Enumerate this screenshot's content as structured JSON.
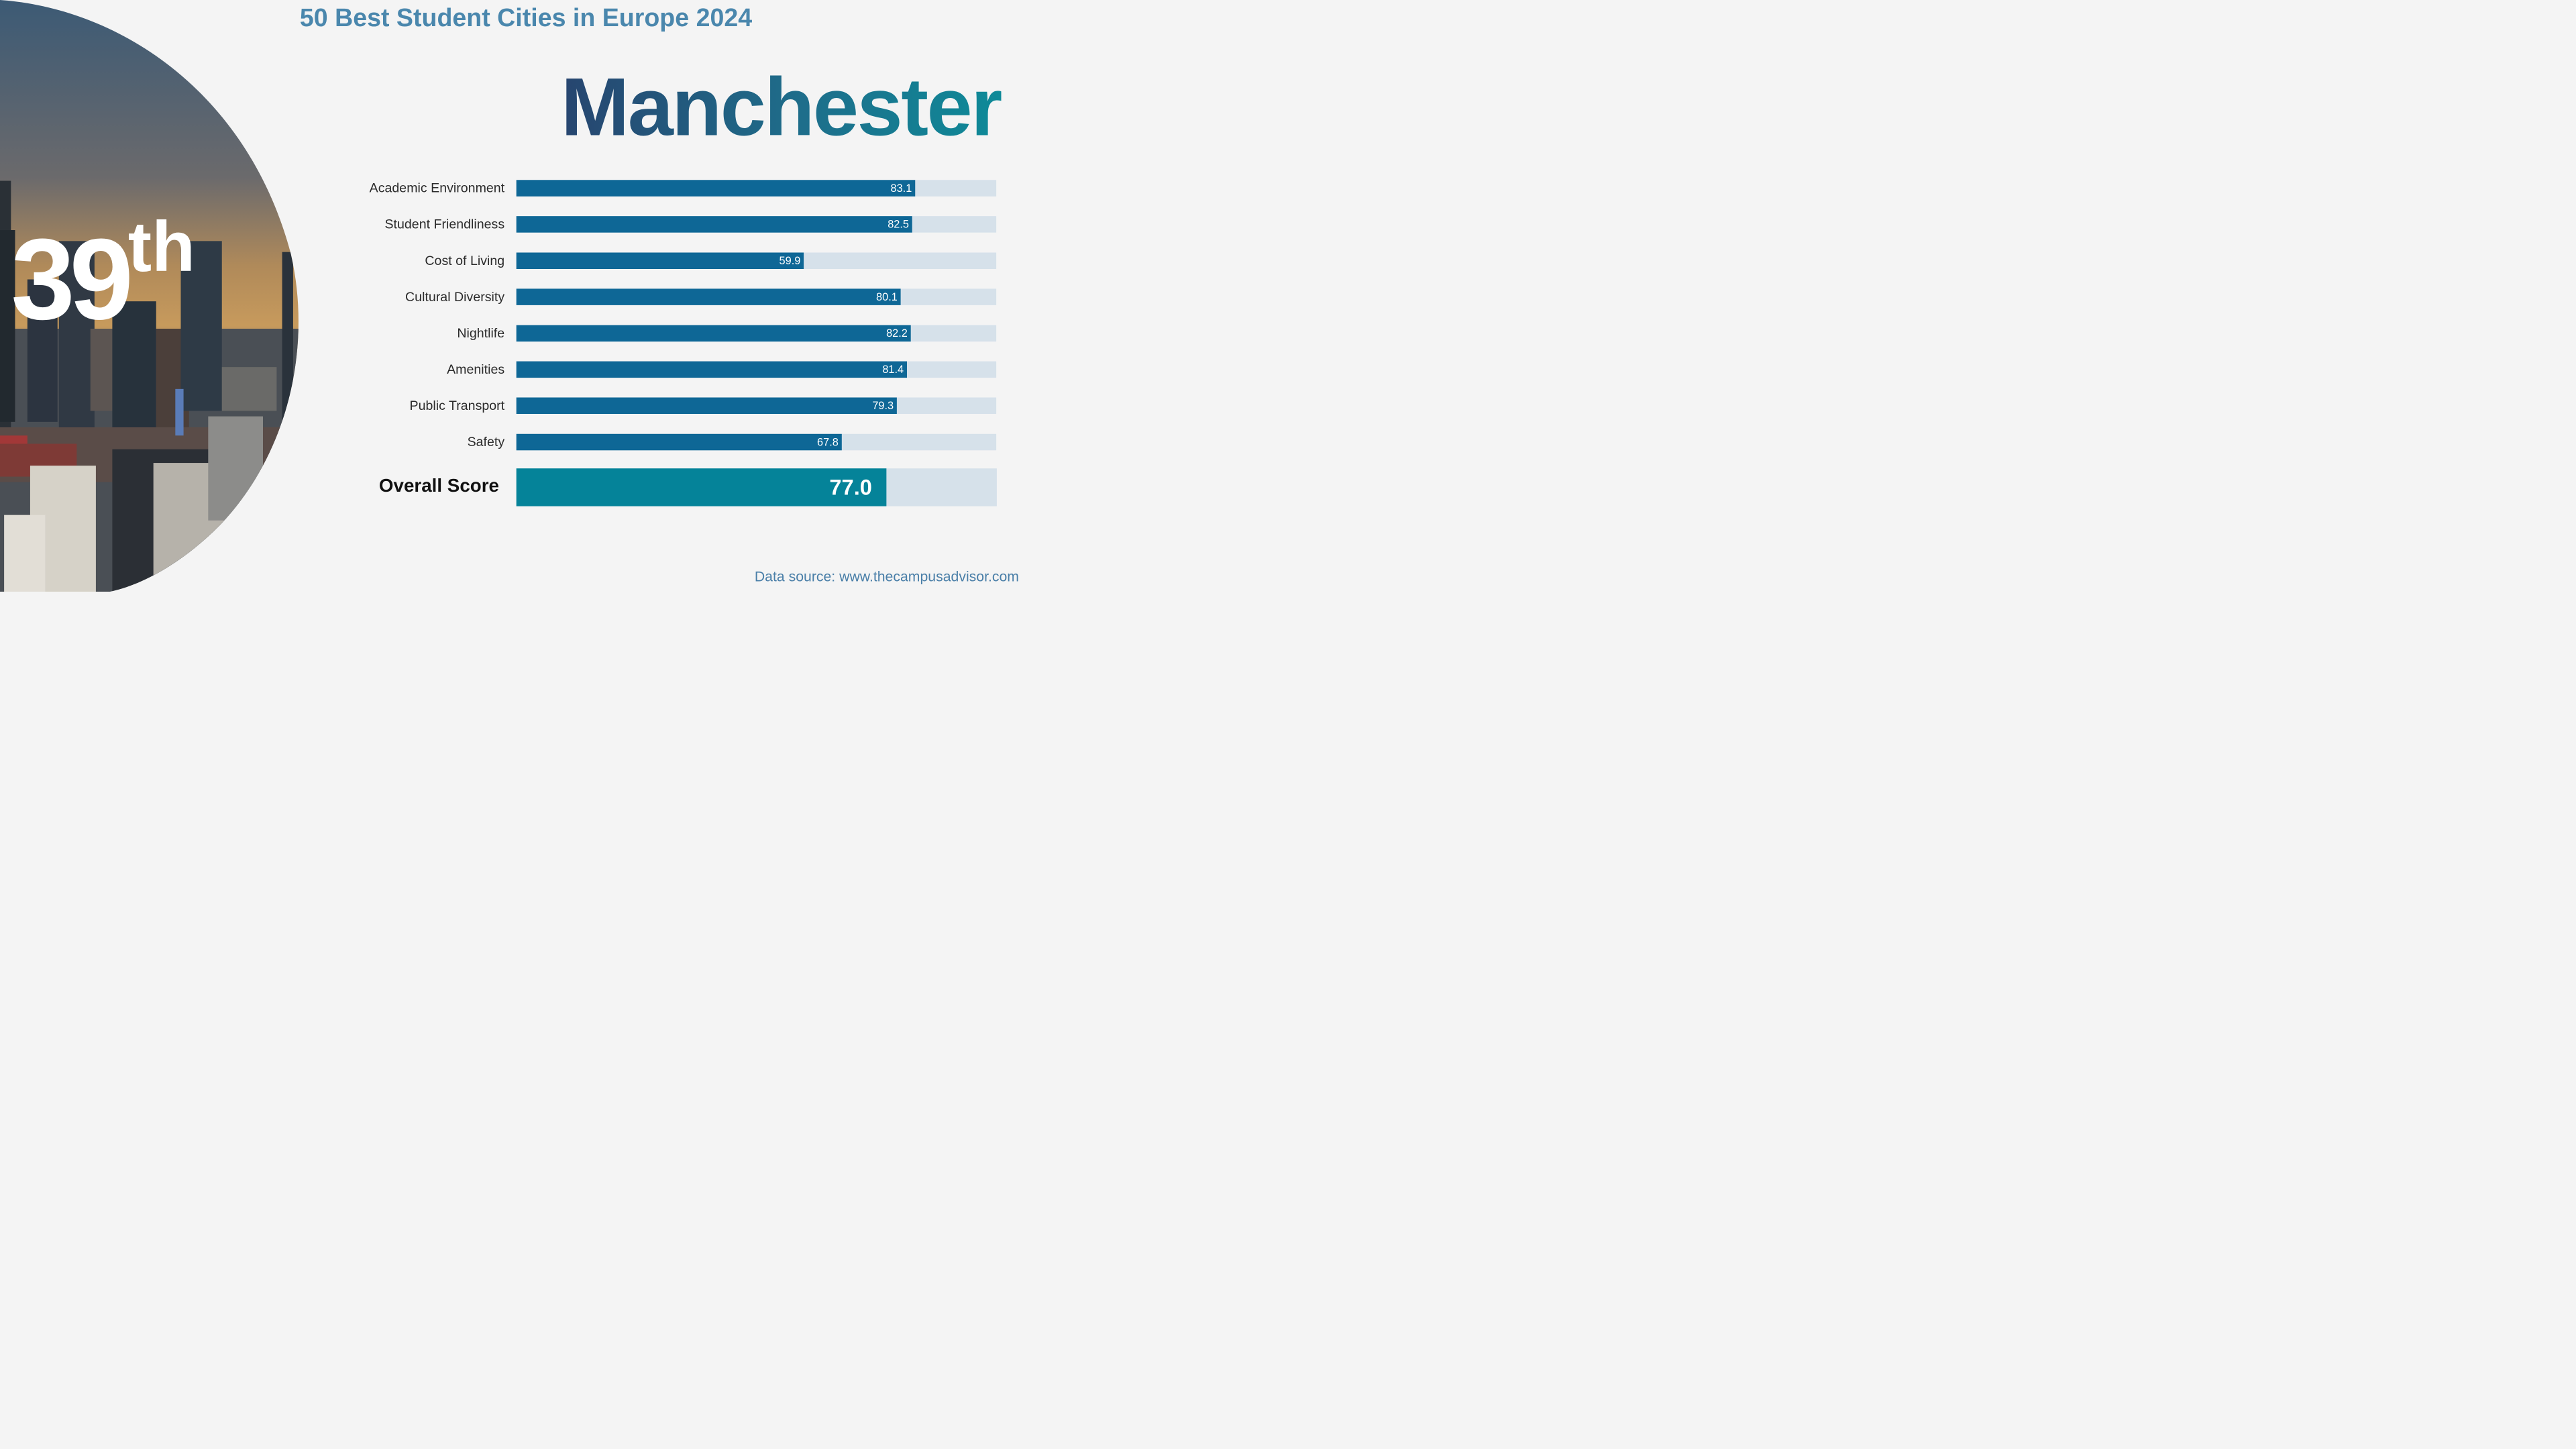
{
  "header": {
    "title": "50 Best Student Cities in Europe 2024"
  },
  "city": {
    "name": "Manchester"
  },
  "rank": {
    "number": "39",
    "suffix": "th"
  },
  "colors": {
    "bar": "#0e6796",
    "track": "#d6e1ea",
    "overall": "#058399",
    "title": "#4a87ad"
  },
  "footer": {
    "source": "Data source: www.thecampusadvisor.com"
  },
  "chart_data": {
    "type": "bar",
    "orientation": "horizontal",
    "title": "50 Best Student Cities in Europe 2024",
    "subtitle": "Manchester",
    "xlim": [
      0,
      100
    ],
    "categories": [
      "Academic Environment",
      "Student Friendliness",
      "Cost of Living",
      "Cultural Diversity",
      "Nightlife",
      "Amenities",
      "Public Transport",
      "Safety"
    ],
    "values": [
      83.1,
      82.5,
      59.9,
      80.1,
      82.2,
      81.4,
      79.3,
      67.8
    ],
    "value_labels": [
      "83.1",
      "82.5",
      "59.9",
      "80.1",
      "82.2",
      "81.4",
      "79.3",
      "67.8"
    ],
    "overall": {
      "label": "Overall Score",
      "value": 77.0,
      "display": "77.0"
    }
  }
}
